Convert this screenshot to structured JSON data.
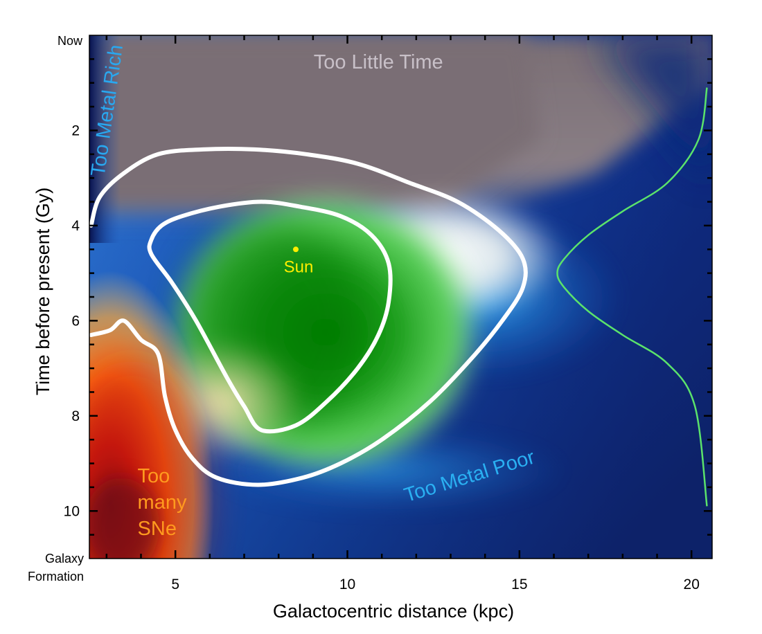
{
  "chart_data": {
    "type": "heatmap",
    "title": "",
    "xlabel": "Galactocentric distance (kpc)",
    "ylabel": "Time before present (Gy)",
    "xlim": [
      2.5,
      20.6
    ],
    "ylim": [
      0,
      11
    ],
    "y_direction": "downward (0 = Now at top)",
    "x_ticks": [
      5,
      10,
      15,
      20
    ],
    "y_ticks": [
      2,
      4,
      6,
      8,
      10
    ],
    "y_top_label": "Now",
    "y_bottom_label": [
      "Galaxy",
      "Formation"
    ],
    "regions": [
      {
        "name": "Too Little Time",
        "color": "#c8c0c8",
        "x": 10.9,
        "y": 0.7
      },
      {
        "name": "Too Metal Rich",
        "color": "#29a8f0",
        "x": 3.2,
        "y": 1.6,
        "rotation": -82
      },
      {
        "name": "Too Metal Poor",
        "color": "#2ab0f2",
        "x": 13.6,
        "y": 9.4,
        "rotation": -17
      },
      {
        "name": "Too many SNe",
        "lines": [
          "Too",
          "many",
          "SNe"
        ],
        "color": "#ff9a1f",
        "x": 3.9,
        "y": 9.4
      }
    ],
    "sun": {
      "label": "Sun",
      "x": 8.5,
      "y": 4.5,
      "color": "#ffee00"
    },
    "contours": [
      {
        "name": "inner-contour",
        "color": "#ffffff",
        "points": [
          [
            4.3,
            4.3
          ],
          [
            4.6,
            4.0
          ],
          [
            5.2,
            3.8
          ],
          [
            6.3,
            3.6
          ],
          [
            7.5,
            3.5
          ],
          [
            8.6,
            3.6
          ],
          [
            9.8,
            3.8
          ],
          [
            10.7,
            4.2
          ],
          [
            11.2,
            4.8
          ],
          [
            11.2,
            5.6
          ],
          [
            10.9,
            6.3
          ],
          [
            10.3,
            7.0
          ],
          [
            9.4,
            7.7
          ],
          [
            8.5,
            8.2
          ],
          [
            7.5,
            8.3
          ],
          [
            7.0,
            7.8
          ],
          [
            6.5,
            7.2
          ],
          [
            5.6,
            6.0
          ],
          [
            4.9,
            5.2
          ],
          [
            4.3,
            4.6
          ]
        ]
      },
      {
        "name": "outer-contour",
        "color": "#ffffff",
        "points": [
          [
            2.55,
            4.0
          ],
          [
            2.8,
            3.4
          ],
          [
            3.5,
            2.9
          ],
          [
            4.5,
            2.5
          ],
          [
            5.8,
            2.4
          ],
          [
            7.3,
            2.4
          ],
          [
            8.8,
            2.5
          ],
          [
            10.3,
            2.7
          ],
          [
            11.8,
            3.1
          ],
          [
            13.2,
            3.5
          ],
          [
            14.4,
            4.1
          ],
          [
            15.1,
            4.7
          ],
          [
            15.1,
            5.3
          ],
          [
            14.5,
            6.0
          ],
          [
            13.6,
            6.8
          ],
          [
            12.4,
            7.7
          ],
          [
            11.0,
            8.5
          ],
          [
            9.8,
            9.0
          ],
          [
            8.7,
            9.3
          ],
          [
            7.4,
            9.45
          ],
          [
            6.2,
            9.3
          ],
          [
            5.5,
            8.9
          ],
          [
            5.0,
            8.3
          ],
          [
            4.7,
            7.6
          ],
          [
            4.5,
            6.7
          ],
          [
            4.0,
            6.4
          ],
          [
            3.5,
            6.0
          ],
          [
            3.1,
            6.2
          ],
          [
            2.55,
            6.3
          ]
        ]
      }
    ],
    "side_curve": {
      "name": "distribution-curve",
      "color": "#5be36b",
      "points": [
        [
          20.45,
          1.1
        ],
        [
          20.2,
          2.2
        ],
        [
          19.3,
          3.1
        ],
        [
          18.0,
          3.7
        ],
        [
          17.0,
          4.2
        ],
        [
          16.3,
          4.7
        ],
        [
          16.1,
          5.0
        ],
        [
          16.3,
          5.3
        ],
        [
          17.0,
          5.8
        ],
        [
          18.0,
          6.3
        ],
        [
          19.3,
          6.9
        ],
        [
          20.1,
          7.8
        ],
        [
          20.45,
          9.9
        ]
      ]
    }
  }
}
